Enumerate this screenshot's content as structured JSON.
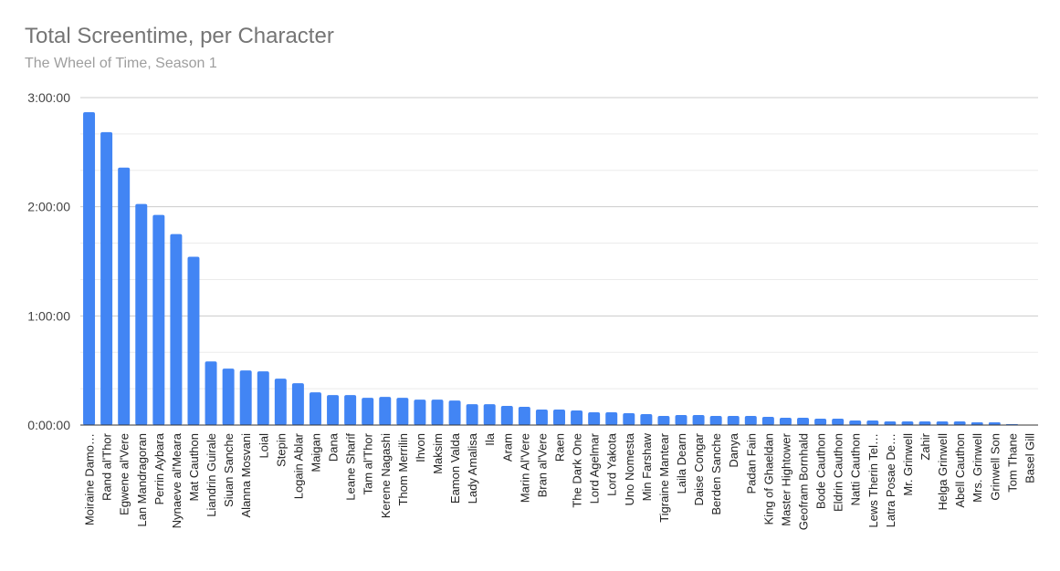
{
  "chart_data": {
    "type": "bar",
    "title": "Total Screentime, per Character",
    "subtitle": "The Wheel of Time, Season 1",
    "xlabel": "",
    "ylabel": "",
    "y_unit": "minutes",
    "ylim": [
      0,
      180
    ],
    "y_ticks": [
      {
        "value": 0,
        "label": "0:00:00"
      },
      {
        "value": 60,
        "label": "1:00:00"
      },
      {
        "value": 120,
        "label": "2:00:00"
      },
      {
        "value": 180,
        "label": "3:00:00"
      }
    ],
    "grid": true,
    "legend": "none",
    "bar_color": "#4285f4",
    "categories": [
      "Moiraine Damo…",
      "Rand al'Thor",
      "Egwene al'Vere",
      "Lan Mandragoran",
      "Perrin Aybara",
      "Nynaeve al'Meara",
      "Mat Cauthon",
      "Liandrin Guirale",
      "Siuan Sanche",
      "Alanna Mosvani",
      "Loial",
      "Stepin",
      "Logain Ablar",
      "Maigan",
      "Dana",
      "Leane Sharif",
      "Tam al'Thor",
      "Kerene Nagashi",
      "Thom Merrilin",
      "Ihvon",
      "Maksim",
      "Eamon Valda",
      "Lady Amalisa",
      "Ila",
      "Aram",
      "Marin Al'Vere",
      "Bran al'Vere",
      "Raen",
      "The Dark One",
      "Lord Agelmar",
      "Lord Yakota",
      "Uno Nomesta",
      "Min Farshaw",
      "Tigraine Mantear",
      "Laila Dearn",
      "Daise Congar",
      "Berden Sanche",
      "Danya",
      "Padan Fain",
      "King of Ghaeldan",
      "Master Hightower",
      "Geofram Bornhald",
      "Bode Cauthon",
      "Eldrin Cauthon",
      "Natti Cauthon",
      "Lews Therin Tel…",
      "Latra Posae De…",
      "Mr. Grinwell",
      "Zahir",
      "Helga Grinwell",
      "Abell Cauthon",
      "Mrs. Grinwell",
      "Grinwell Son",
      "Tom Thane",
      "Basel Gill"
    ],
    "values": [
      172,
      161,
      141.5,
      121.5,
      115.5,
      105,
      92.5,
      35,
      31,
      30,
      29.5,
      25.5,
      23,
      18,
      16.5,
      16.5,
      15,
      15.5,
      15,
      14,
      14,
      13.5,
      11.5,
      11.5,
      10.5,
      10,
      8.5,
      8.5,
      8,
      7,
      7,
      6.5,
      6,
      5,
      5.5,
      5.5,
      5,
      5,
      5,
      4.5,
      4,
      4,
      3.5,
      3.5,
      2.5,
      2.5,
      2,
      2,
      2,
      2,
      2,
      1.5,
      1.5,
      0.5,
      0
    ]
  }
}
